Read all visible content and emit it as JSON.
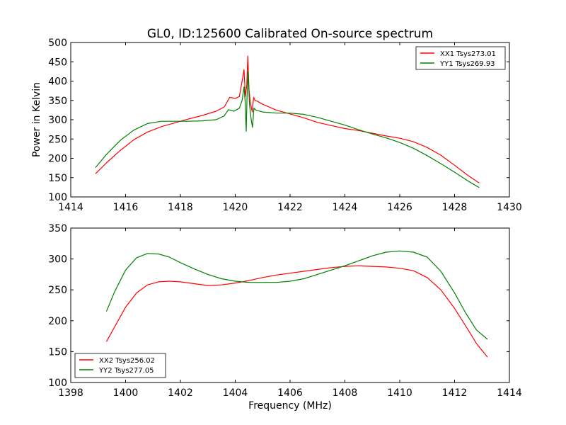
{
  "chart_data": [
    {
      "type": "line",
      "title": "GL0, ID:125600 Calibrated On-source spectrum",
      "xlabel": "",
      "ylabel": "Power in Kelvin",
      "xlim": [
        1414,
        1430
      ],
      "ylim": [
        100,
        500
      ],
      "x_ticks": [
        1414,
        1416,
        1418,
        1420,
        1422,
        1424,
        1426,
        1428,
        1430
      ],
      "y_ticks": [
        100,
        150,
        200,
        250,
        300,
        350,
        400,
        450,
        500
      ],
      "grid": false,
      "legend": "top-right",
      "series": [
        {
          "name": "XX1 Tsys273.01",
          "color": "#ff0000",
          "x": [
            1414.9,
            1415.3,
            1415.8,
            1416.3,
            1416.8,
            1417.3,
            1417.8,
            1418.3,
            1418.8,
            1419.3,
            1419.6,
            1419.8,
            1420.0,
            1420.15,
            1420.25,
            1420.32,
            1420.37,
            1420.42,
            1420.46,
            1420.5,
            1420.55,
            1420.62,
            1420.67,
            1420.72,
            1420.8,
            1421.0,
            1421.5,
            1422.0,
            1422.5,
            1423.0,
            1423.5,
            1424.0,
            1424.5,
            1425.0,
            1425.5,
            1426.0,
            1426.5,
            1427.0,
            1427.5,
            1428.0,
            1428.5,
            1428.9
          ],
          "values": [
            160,
            188,
            220,
            248,
            268,
            282,
            292,
            302,
            311,
            322,
            333,
            358,
            355,
            360,
            400,
            430,
            360,
            390,
            465,
            380,
            345,
            320,
            358,
            350,
            348,
            340,
            325,
            315,
            305,
            293,
            285,
            277,
            272,
            265,
            258,
            252,
            243,
            228,
            208,
            182,
            155,
            136
          ]
        },
        {
          "name": "YY1 Tsys269.93",
          "color": "#008000",
          "x": [
            1414.9,
            1415.3,
            1415.8,
            1416.3,
            1416.8,
            1417.3,
            1417.8,
            1418.3,
            1418.8,
            1419.3,
            1419.6,
            1419.75,
            1419.95,
            1420.15,
            1420.25,
            1420.32,
            1420.36,
            1420.4,
            1420.43,
            1420.47,
            1420.52,
            1420.58,
            1420.63,
            1420.68,
            1420.75,
            1421.0,
            1421.5,
            1422.0,
            1422.5,
            1423.0,
            1423.5,
            1424.0,
            1424.5,
            1425.0,
            1425.5,
            1426.0,
            1426.5,
            1427.0,
            1427.5,
            1428.0,
            1428.5,
            1428.9
          ],
          "values": [
            176,
            210,
            246,
            273,
            290,
            296,
            296,
            296,
            297,
            300,
            310,
            326,
            322,
            330,
            350,
            385,
            350,
            270,
            360,
            425,
            340,
            300,
            280,
            330,
            325,
            320,
            317,
            317,
            314,
            306,
            296,
            286,
            274,
            263,
            253,
            241,
            226,
            207,
            186,
            164,
            141,
            124
          ]
        }
      ]
    },
    {
      "type": "line",
      "title": "",
      "xlabel": "Frequency (MHz)",
      "ylabel": "",
      "xlim": [
        1398,
        1414
      ],
      "ylim": [
        100,
        350
      ],
      "x_ticks": [
        1398,
        1400,
        1402,
        1404,
        1406,
        1408,
        1410,
        1412,
        1414
      ],
      "y_ticks": [
        100,
        150,
        200,
        250,
        300,
        350
      ],
      "grid": false,
      "legend": "bottom-left",
      "series": [
        {
          "name": "XX2 Tsys256.02",
          "color": "#ff0000",
          "x": [
            1399.3,
            1399.6,
            1400.0,
            1400.4,
            1400.8,
            1401.2,
            1401.6,
            1402.0,
            1402.5,
            1403.0,
            1403.5,
            1404.0,
            1404.5,
            1405.0,
            1405.5,
            1406.0,
            1406.5,
            1407.0,
            1407.5,
            1408.0,
            1408.5,
            1409.0,
            1409.5,
            1410.0,
            1410.5,
            1411.0,
            1411.5,
            1412.0,
            1412.4,
            1412.8,
            1413.2
          ],
          "values": [
            166,
            190,
            222,
            245,
            258,
            263,
            264,
            263,
            260,
            257,
            258,
            261,
            265,
            270,
            274,
            277,
            280,
            283,
            286,
            288,
            289,
            288,
            287,
            285,
            281,
            270,
            250,
            220,
            192,
            163,
            141
          ]
        },
        {
          "name": "YY2 Tsys277.05",
          "color": "#008000",
          "x": [
            1399.3,
            1399.6,
            1400.0,
            1400.4,
            1400.8,
            1401.2,
            1401.6,
            1402.0,
            1402.5,
            1403.0,
            1403.5,
            1404.0,
            1404.5,
            1405.0,
            1405.5,
            1406.0,
            1406.5,
            1407.0,
            1407.5,
            1408.0,
            1408.5,
            1409.0,
            1409.5,
            1410.0,
            1410.5,
            1411.0,
            1411.5,
            1412.0,
            1412.4,
            1412.8,
            1413.2
          ],
          "values": [
            215,
            247,
            282,
            302,
            309,
            308,
            303,
            294,
            284,
            275,
            268,
            264,
            262,
            262,
            262,
            264,
            268,
            275,
            282,
            289,
            297,
            305,
            311,
            313,
            311,
            303,
            280,
            245,
            213,
            185,
            170
          ]
        }
      ]
    }
  ]
}
